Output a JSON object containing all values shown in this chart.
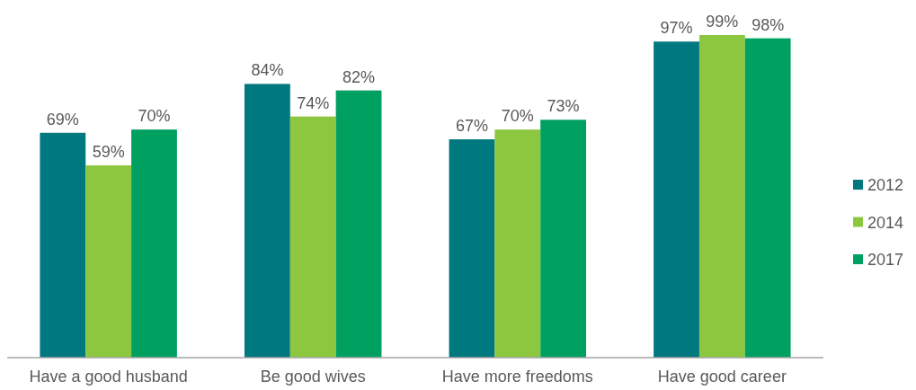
{
  "chart_data": {
    "type": "bar",
    "categories": [
      "Have a good husband",
      "Be good wives",
      "Have more freedoms",
      "Have good career"
    ],
    "series": [
      {
        "name": "2012",
        "color": "#00787f",
        "values": [
          69,
          84,
          67,
          97
        ],
        "value_labels": [
          "69%",
          "84%",
          "67%",
          "97%"
        ]
      },
      {
        "name": "2014",
        "color": "#8dc63f",
        "values": [
          59,
          74,
          70,
          99
        ],
        "value_labels": [
          "59%",
          "74%",
          "70%",
          "99%"
        ]
      },
      {
        "name": "2017",
        "color": "#00a160",
        "values": [
          70,
          82,
          73,
          98
        ],
        "value_labels": [
          "70%",
          "82%",
          "73%",
          "98%"
        ]
      }
    ],
    "legend": "right"
  }
}
